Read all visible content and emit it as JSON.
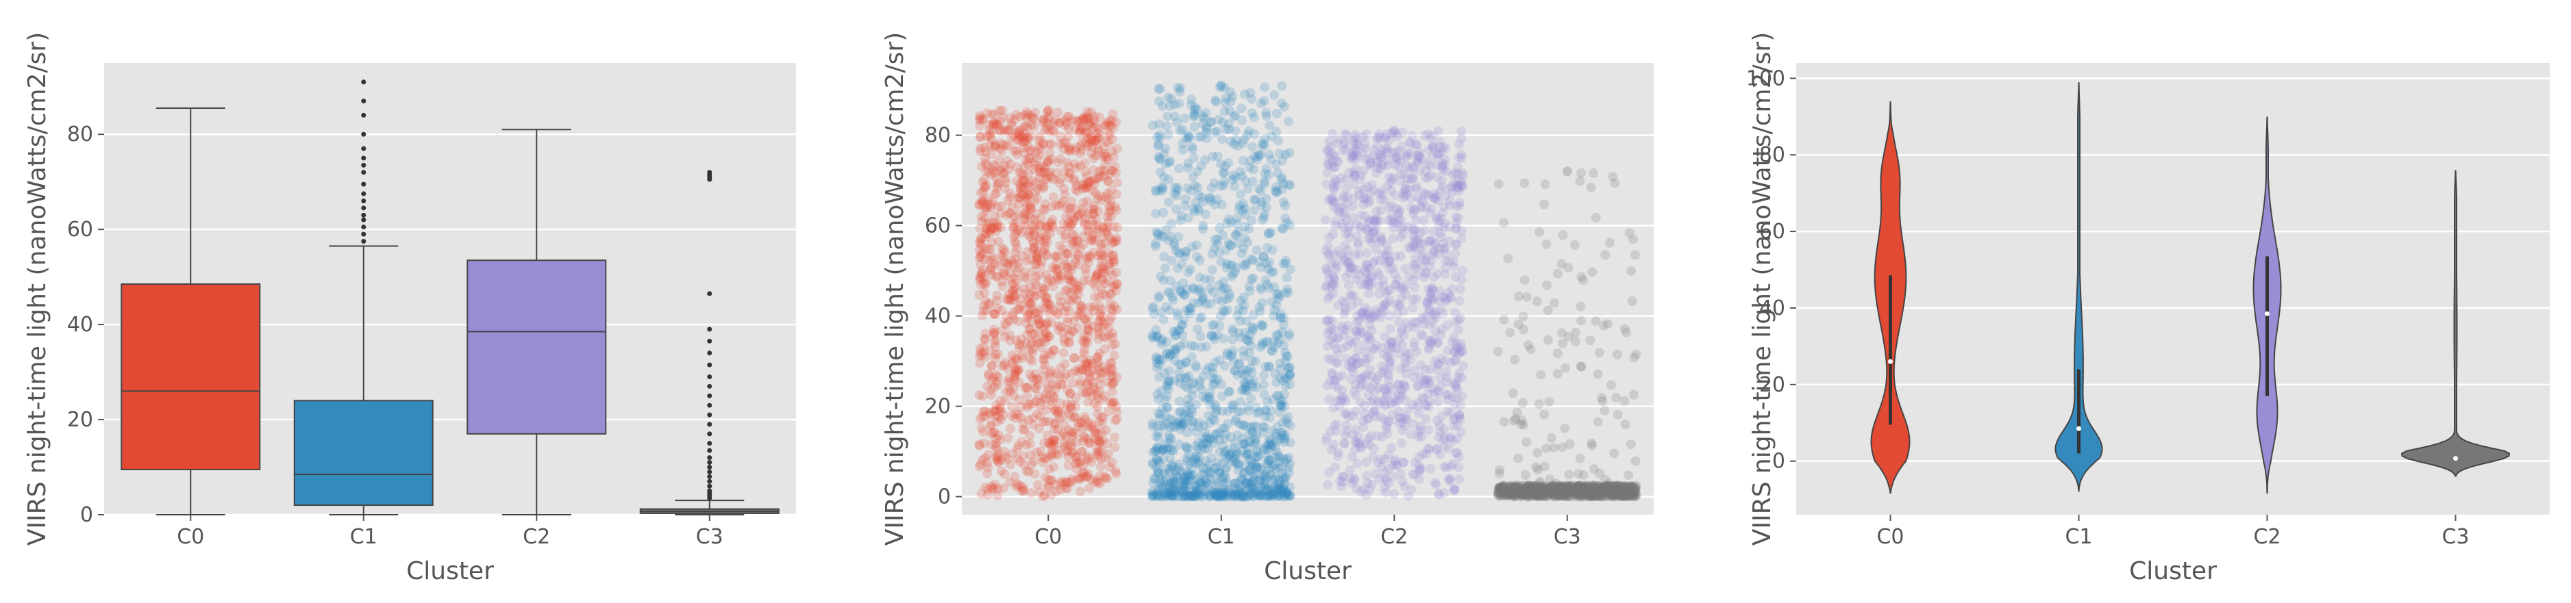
{
  "chart_data": [
    {
      "type": "box",
      "title": "",
      "xlabel": "Cluster",
      "ylabel": "VIIRS night-time light (nanoWatts/cm2/sr)",
      "ylim": [
        0,
        95
      ],
      "yticks": [
        0,
        20,
        40,
        60,
        80
      ],
      "categories": [
        "C0",
        "C1",
        "C2",
        "C3"
      ],
      "colors": [
        "#e24a33",
        "#348abd",
        "#988ed5",
        "#777777"
      ],
      "boxes": [
        {
          "name": "C0",
          "whisker_low": 0,
          "q1": 9.5,
          "median": 26,
          "q3": 48.5,
          "whisker_high": 85.5,
          "fliers": []
        },
        {
          "name": "C1",
          "whisker_low": 0,
          "q1": 2,
          "median": 8.5,
          "q3": 24,
          "whisker_high": 56.5,
          "fliers": [
            57.5,
            59,
            60.5,
            62,
            63,
            64.5,
            66,
            67.5,
            69.5,
            72,
            73.5,
            75,
            77,
            80,
            84,
            87,
            91
          ]
        },
        {
          "name": "C2",
          "whisker_low": 0,
          "q1": 17,
          "median": 38.5,
          "q3": 53.5,
          "whisker_high": 81,
          "fliers": []
        },
        {
          "name": "C3",
          "whisker_low": 0,
          "q1": 0.3,
          "median": 0.7,
          "q3": 1.2,
          "whisker_high": 3,
          "fliers": [
            3.5,
            4,
            4.5,
            5,
            6,
            7,
            8,
            9,
            10,
            11,
            12,
            13.5,
            15,
            17,
            19,
            21,
            23,
            25,
            27,
            29,
            31.5,
            34,
            36.5,
            39,
            46.5,
            70.5,
            71,
            71.5,
            72
          ]
        }
      ]
    },
    {
      "type": "scatter",
      "title": "",
      "xlabel": "Cluster",
      "ylabel": "VIIRS night-time light (nanoWatts/cm2/sr)",
      "ylim": [
        -4,
        96
      ],
      "yticks": [
        0,
        20,
        40,
        60,
        80
      ],
      "categories": [
        "C0",
        "C1",
        "C2",
        "C3"
      ],
      "colors": [
        "#e24a33",
        "#348abd",
        "#988ed5",
        "#777777"
      ],
      "strip_ranges": [
        {
          "name": "C0",
          "min": 0,
          "max": 85.5
        },
        {
          "name": "C1",
          "min": 0,
          "max": 91
        },
        {
          "name": "C2",
          "min": 0,
          "max": 81
        },
        {
          "name": "C3",
          "min": 0,
          "max": 72
        }
      ]
    },
    {
      "type": "violin",
      "title": "",
      "xlabel": "Cluster",
      "ylabel": "VIIRS night-time light (nanoWatts/cm2/sr)",
      "ylim": [
        -14,
        104
      ],
      "yticks": [
        0,
        20,
        40,
        60,
        80,
        100
      ],
      "categories": [
        "C0",
        "C1",
        "C2",
        "C3"
      ],
      "colors": [
        "#e24a33",
        "#348abd",
        "#988ed5",
        "#777777"
      ],
      "violins": [
        {
          "name": "C0",
          "min": -8.5,
          "max": 94,
          "q1": 9.5,
          "median": 26,
          "q3": 48.5
        },
        {
          "name": "C1",
          "min": -8,
          "max": 99,
          "q1": 2,
          "median": 8.5,
          "q3": 24
        },
        {
          "name": "C2",
          "min": -8.5,
          "max": 90,
          "q1": 17,
          "median": 38.5,
          "q3": 53.5
        },
        {
          "name": "C3",
          "min": -4,
          "max": 76,
          "q1": 0.3,
          "median": 0.7,
          "q3": 1.2
        }
      ]
    }
  ]
}
